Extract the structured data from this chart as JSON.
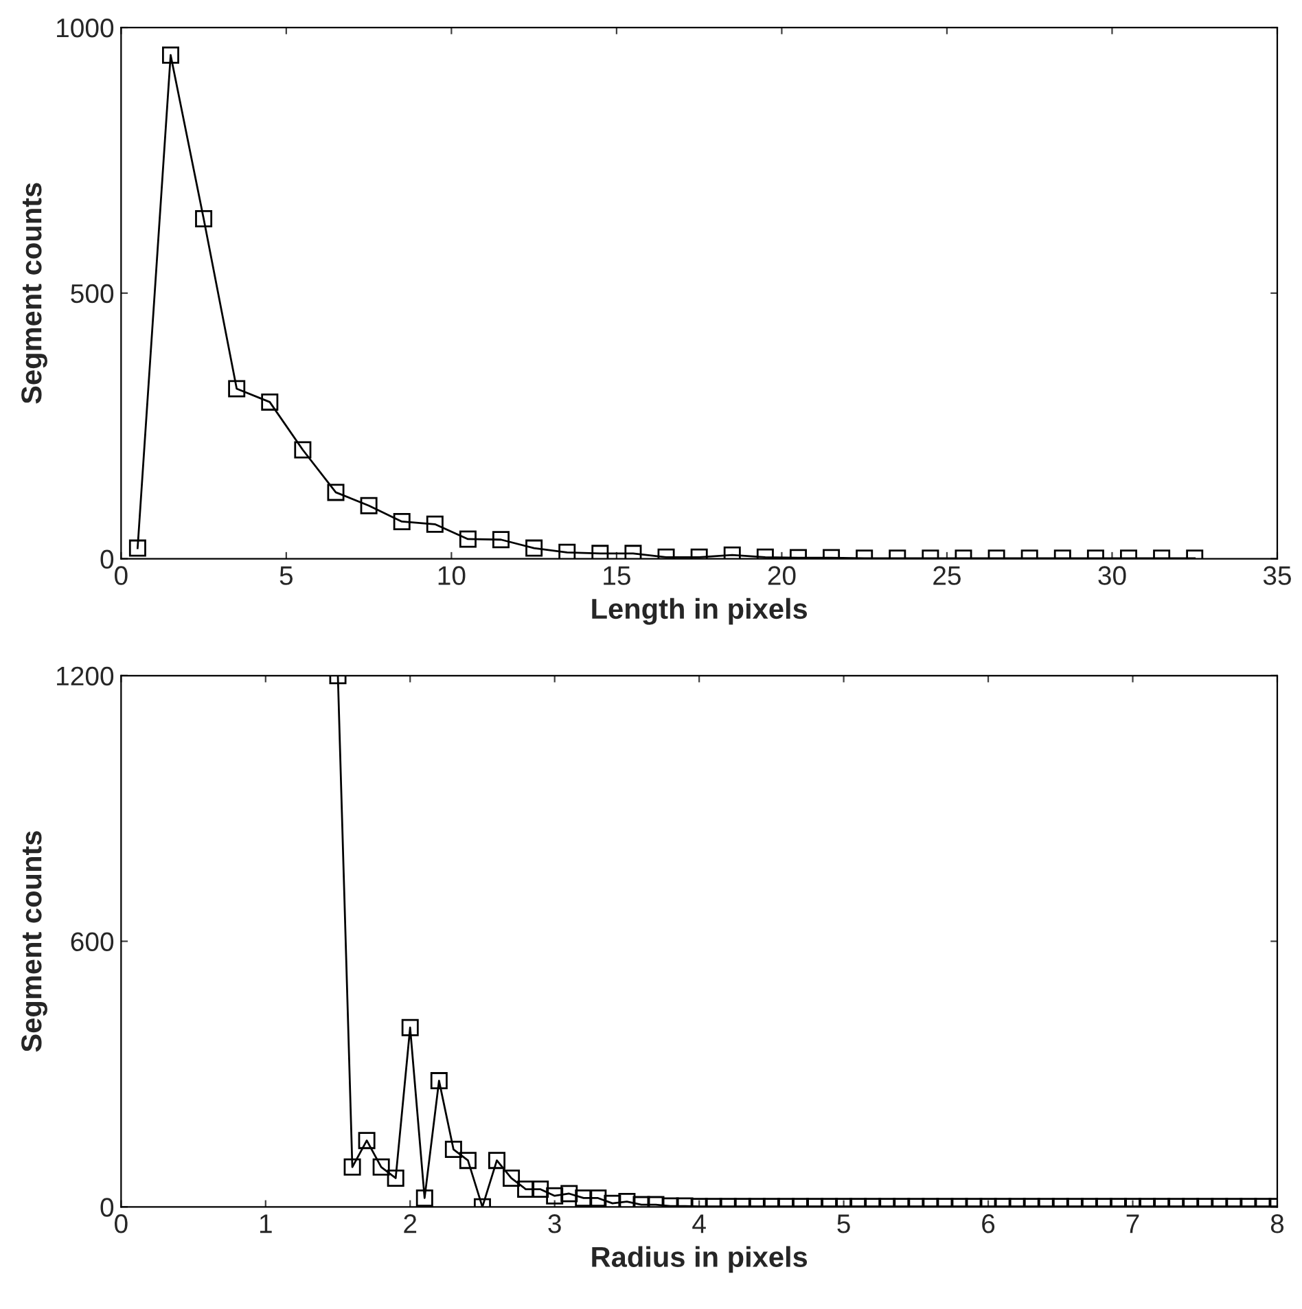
{
  "chart_data": [
    {
      "type": "line",
      "xlabel": "Length in pixels",
      "ylabel": "Segment counts",
      "xlim": [
        0,
        35
      ],
      "ylim": [
        0,
        1000
      ],
      "xticks": [
        0,
        5,
        10,
        15,
        20,
        25,
        30,
        35
      ],
      "yticks": [
        0,
        500,
        1000
      ],
      "marker": "square",
      "line_style": "solid",
      "grid": false,
      "legend": false,
      "x": [
        0.5,
        1.5,
        2.5,
        3.5,
        4.5,
        5.5,
        6.5,
        7.5,
        8.5,
        9.5,
        10.5,
        11.5,
        12.5,
        13.5,
        14.5,
        15.5,
        16.5,
        17.5,
        18.5,
        19.5,
        20.5,
        21.5,
        22.5,
        23.5,
        24.5,
        25.5,
        26.5,
        27.5,
        28.5,
        29.5,
        30.5,
        31.5,
        32.5
      ],
      "series": [
        {
          "color": "#000000",
          "values": [
            20,
            948,
            640,
            320,
            295,
            205,
            125,
            100,
            70,
            65,
            37,
            36,
            20,
            12,
            10,
            10,
            3,
            3,
            7,
            3,
            2,
            2,
            1,
            1,
            1,
            1,
            1,
            1,
            1,
            1,
            1,
            1,
            1
          ]
        }
      ]
    },
    {
      "type": "line",
      "xlabel": "Radius in pixels",
      "ylabel": "Segment counts",
      "xlim": [
        0,
        8
      ],
      "ylim": [
        0,
        1200
      ],
      "xticks": [
        0,
        1,
        2,
        3,
        4,
        5,
        6,
        7,
        8
      ],
      "yticks": [
        0,
        600,
        1200
      ],
      "marker": "square",
      "line_style": "solid",
      "grid": false,
      "legend": false,
      "x": [
        1.5,
        1.6,
        1.7,
        1.8,
        1.9,
        2.0,
        2.1,
        2.2,
        2.3,
        2.4,
        2.5,
        2.6,
        2.7,
        2.8,
        2.9,
        3.0,
        3.1,
        3.2,
        3.3,
        3.4,
        3.5,
        3.6,
        3.7,
        3.8,
        3.9,
        4.0,
        4.1,
        4.2,
        4.3,
        4.4,
        4.5,
        4.6,
        4.7,
        4.8,
        4.9,
        5.0,
        5.1,
        5.2,
        5.3,
        5.4,
        5.5,
        5.6,
        5.7,
        5.8,
        5.9,
        6.0,
        6.1,
        6.2,
        6.3,
        6.4,
        6.5,
        6.6,
        6.7,
        6.8,
        6.9,
        7.0,
        7.1,
        7.2,
        7.3,
        7.4,
        7.5,
        7.6,
        7.7,
        7.8,
        7.9,
        8.0
      ],
      "series": [
        {
          "color": "#000000",
          "values": [
            1200,
            90,
            150,
            90,
            65,
            405,
            20,
            285,
            130,
            105,
            0,
            105,
            65,
            40,
            40,
            25,
            30,
            20,
            20,
            8,
            12,
            5,
            5,
            2,
            2,
            1,
            1,
            1,
            1,
            1,
            1,
            1,
            1,
            1,
            1,
            1,
            1,
            1,
            1,
            1,
            1,
            1,
            1,
            1,
            1,
            1,
            1,
            1,
            1,
            1,
            1,
            1,
            1,
            1,
            1,
            1,
            1,
            1,
            1,
            1,
            1,
            1,
            1,
            1,
            1,
            1
          ]
        }
      ]
    }
  ]
}
